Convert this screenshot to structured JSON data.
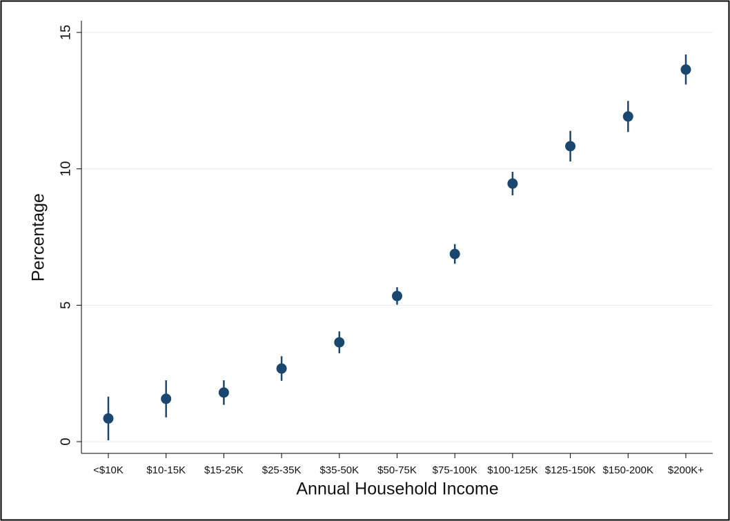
{
  "chart_data": {
    "type": "scatter",
    "x_label": "Annual Household Income",
    "y_label": "Percentage",
    "categories": [
      "<$10K",
      "$10-15K",
      "$15-25K",
      "$25-35K",
      "$35-50K",
      "$50-75K",
      "$75-100K",
      "$100-125K",
      "$125-150K",
      "$150-200K",
      "$200K+"
    ],
    "values": [
      0.85,
      1.57,
      1.8,
      2.68,
      3.64,
      5.34,
      6.88,
      9.46,
      10.83,
      11.92,
      13.64
    ],
    "errors": [
      0.8,
      0.68,
      0.45,
      0.45,
      0.4,
      0.32,
      0.36,
      0.43,
      0.56,
      0.57,
      0.55
    ],
    "color": "#1a476f",
    "ylim": [
      -0.43,
      15.43
    ],
    "yticks": [
      0,
      5,
      10,
      15
    ],
    "grid": true
  }
}
